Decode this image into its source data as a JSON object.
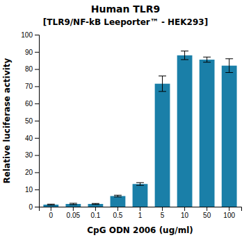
{
  "chart_data": {
    "type": "bar",
    "title": "Human TLR9",
    "subtitle": "[TLR9/NF-kB Leeporter™ - HEK293]",
    "xlabel": "CpG ODN 2006  (ug/ml)",
    "ylabel": "Relative luciferase activity",
    "categories": [
      "0",
      "0.05",
      "0.1",
      "0.5",
      "1",
      "5",
      "10",
      "50",
      "100"
    ],
    "values": [
      1.2,
      1.6,
      1.6,
      6.2,
      13.2,
      71.5,
      88.0,
      85.5,
      82.0
    ],
    "errors": [
      0.3,
      0.4,
      0.3,
      0.5,
      0.8,
      4.5,
      2.5,
      1.5,
      4.0
    ],
    "color": "#1a7fa8",
    "ylim": [
      0,
      100
    ],
    "yticks": [
      0,
      10,
      20,
      30,
      40,
      50,
      60,
      70,
      80,
      90,
      100
    ],
    "grid": false
  }
}
